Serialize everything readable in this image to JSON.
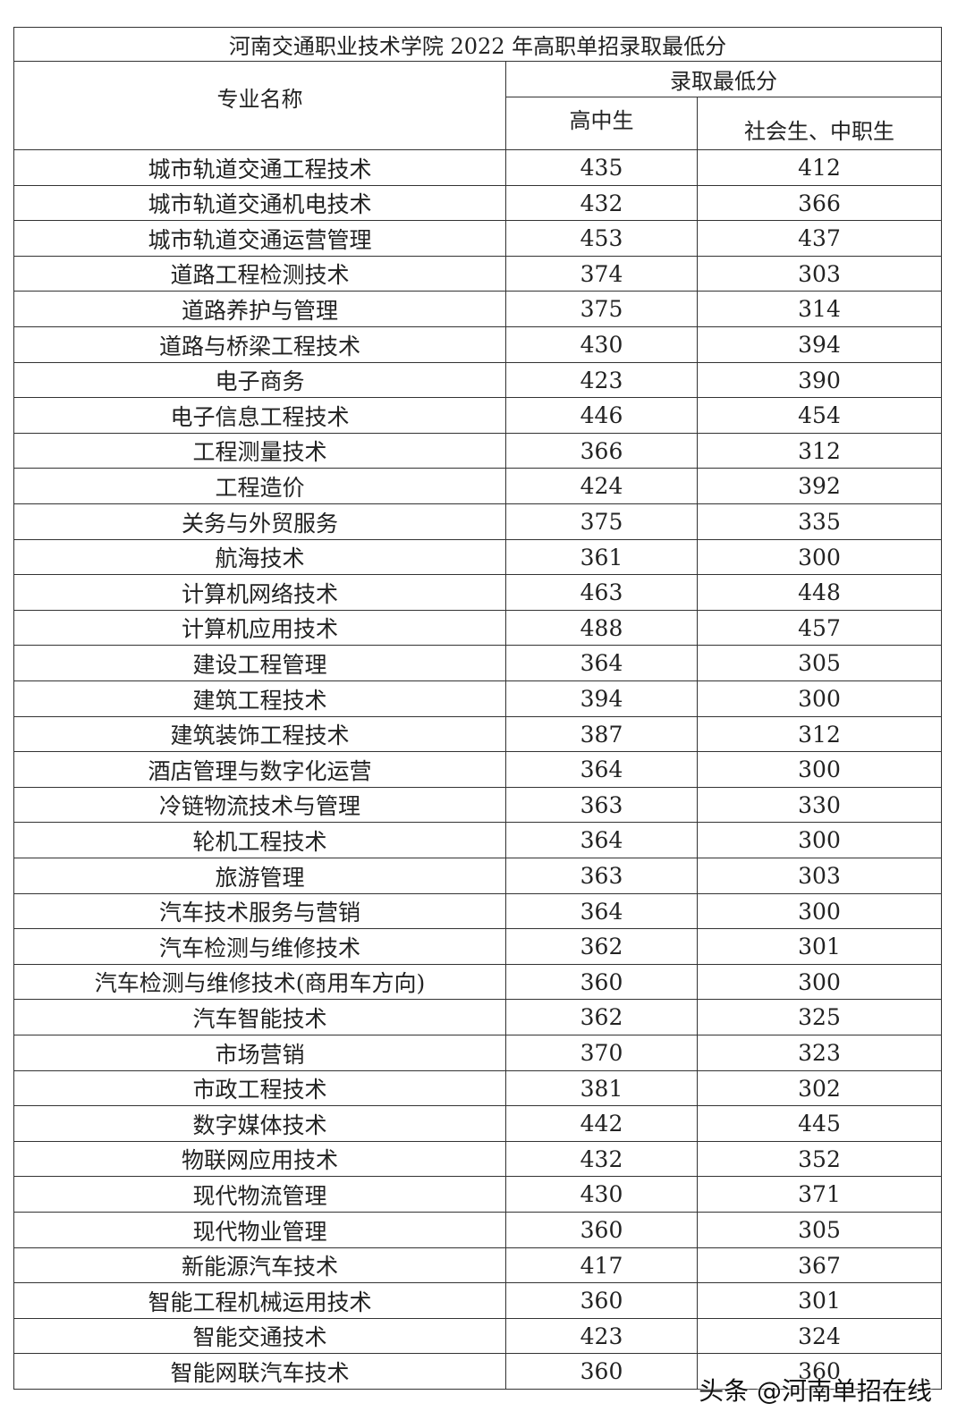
{
  "table": {
    "title": "河南交通职业技术学院 2022 年高职单招录取最低分",
    "header": {
      "major": "专业名称",
      "group": "录取最低分",
      "col1": "高中生",
      "col2": "社会生、中职生"
    },
    "rows": [
      [
        "城市轨道交通工程技术",
        435,
        412
      ],
      [
        "城市轨道交通机电技术",
        432,
        366
      ],
      [
        "城市轨道交通运营管理",
        453,
        437
      ],
      [
        "道路工程检测技术",
        374,
        303
      ],
      [
        "道路养护与管理",
        375,
        314
      ],
      [
        "道路与桥梁工程技术",
        430,
        394
      ],
      [
        "电子商务",
        423,
        390
      ],
      [
        "电子信息工程技术",
        446,
        454
      ],
      [
        "工程测量技术",
        366,
        312
      ],
      [
        "工程造价",
        424,
        392
      ],
      [
        "关务与外贸服务",
        375,
        335
      ],
      [
        "航海技术",
        361,
        300
      ],
      [
        "计算机网络技术",
        463,
        448
      ],
      [
        "计算机应用技术",
        488,
        457
      ],
      [
        "建设工程管理",
        364,
        305
      ],
      [
        "建筑工程技术",
        394,
        300
      ],
      [
        "建筑装饰工程技术",
        387,
        312
      ],
      [
        "酒店管理与数字化运营",
        364,
        300
      ],
      [
        "冷链物流技术与管理",
        363,
        330
      ],
      [
        "轮机工程技术",
        364,
        300
      ],
      [
        "旅游管理",
        363,
        303
      ],
      [
        "汽车技术服务与营销",
        364,
        300
      ],
      [
        "汽车检测与维修技术",
        362,
        301
      ],
      [
        "汽车检测与维修技术(商用车方向)",
        360,
        300
      ],
      [
        "汽车智能技术",
        362,
        325
      ],
      [
        "市场营销",
        370,
        323
      ],
      [
        "市政工程技术",
        381,
        302
      ],
      [
        "数字媒体技术",
        442,
        445
      ],
      [
        "物联网应用技术",
        432,
        352
      ],
      [
        "现代物流管理",
        430,
        371
      ],
      [
        "现代物业管理",
        360,
        305
      ],
      [
        "新能源汽车技术",
        417,
        367
      ],
      [
        "智能工程机械运用技术",
        360,
        301
      ],
      [
        "智能交通技术",
        423,
        324
      ],
      [
        "智能网联汽车技术",
        360,
        360
      ]
    ]
  },
  "watermark": "头条 @河南单招在线"
}
